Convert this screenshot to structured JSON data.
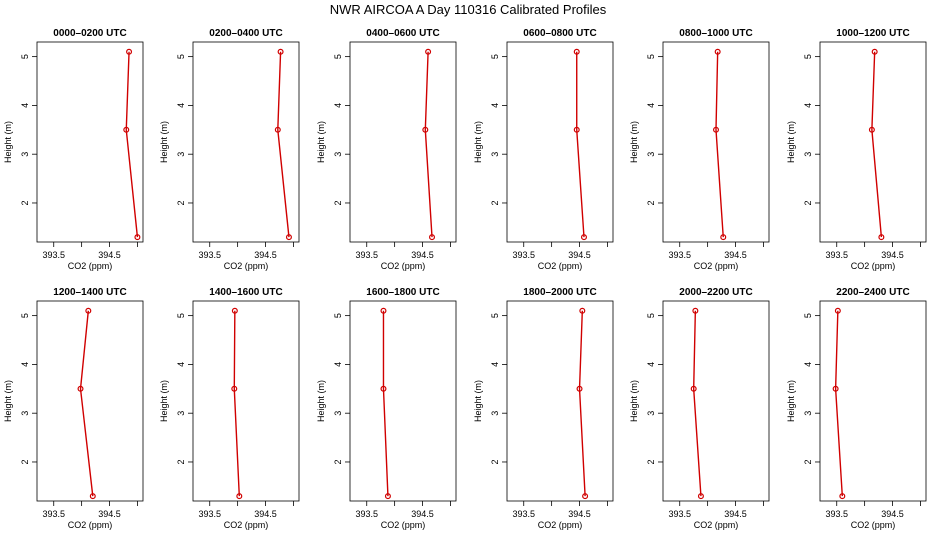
{
  "title": "NWR AIRCOA A  Day 110316  Calibrated Profiles",
  "chart_data": {
    "type": "line",
    "xlabel": "CO2 (ppm)",
    "ylabel": "Height (m)",
    "xlim": [
      393.2,
      395.1
    ],
    "ylim": [
      1.2,
      5.3
    ],
    "xticks": [
      "393.5",
      "394.5"
    ],
    "xtick_values": [
      393.5,
      394.5
    ],
    "xtick_marks": [
      393.5,
      394.0,
      394.5,
      395.0
    ],
    "yticks": [
      "2",
      "3",
      "4",
      "5"
    ],
    "ytick_values": [
      2,
      3,
      4,
      5
    ],
    "heights": [
      5.1,
      3.5,
      1.3
    ],
    "series_color": "#d00000",
    "panels": [
      {
        "title": "0000–0200 UTC",
        "values": [
          394.85,
          394.8,
          395.0
        ]
      },
      {
        "title": "0200–0400 UTC",
        "values": [
          394.77,
          394.72,
          394.92
        ]
      },
      {
        "title": "0400–0600 UTC",
        "values": [
          394.6,
          394.55,
          394.67
        ]
      },
      {
        "title": "0600–0800 UTC",
        "values": [
          394.45,
          394.45,
          394.58
        ]
      },
      {
        "title": "0800–1000 UTC",
        "values": [
          394.18,
          394.15,
          394.28
        ]
      },
      {
        "title": "1000–1200 UTC",
        "values": [
          394.18,
          394.13,
          394.3
        ]
      },
      {
        "title": "1200–1400 UTC",
        "values": [
          394.12,
          393.98,
          394.2
        ]
      },
      {
        "title": "1400–1600 UTC",
        "values": [
          393.95,
          393.94,
          394.03
        ]
      },
      {
        "title": "1600–1800 UTC",
        "values": [
          393.8,
          393.8,
          393.88
        ]
      },
      {
        "title": "1800–2000 UTC",
        "values": [
          394.55,
          394.5,
          394.6
        ]
      },
      {
        "title": "2000–2200 UTC",
        "values": [
          393.78,
          393.75,
          393.88
        ]
      },
      {
        "title": "2200–2400 UTC",
        "values": [
          393.52,
          393.48,
          393.6
        ]
      }
    ]
  }
}
